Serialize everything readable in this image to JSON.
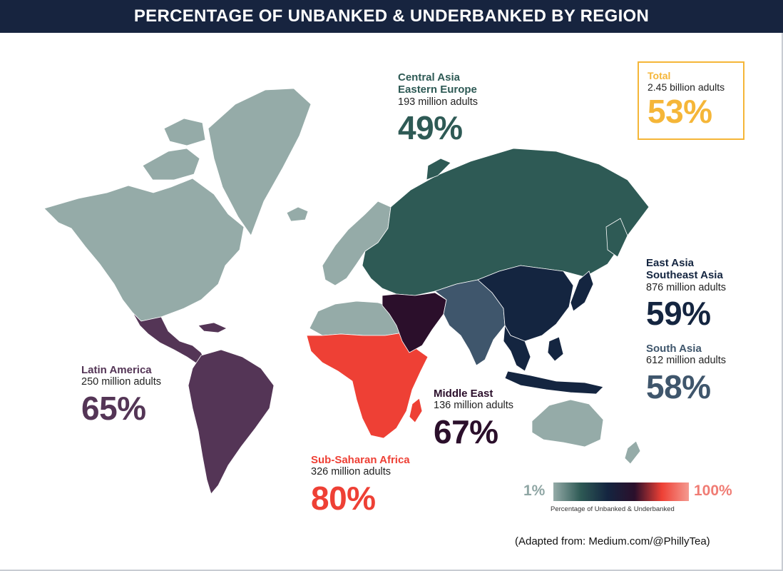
{
  "header": {
    "title": "PERCENTAGE OF UNBANKED & UNDERBANKED BY REGION"
  },
  "colors": {
    "header_bg": "#17243f",
    "unlisted_land": "#95aba8",
    "central_asia": "#2e5a55",
    "east_asia": "#142540",
    "south_asia": "#3f566c",
    "middle_east": "#2b0f2b",
    "latin_america": "#543556",
    "sub_saharan_africa": "#ee4035",
    "total": "#f5b638"
  },
  "regions": {
    "central_asia": {
      "name_line1": "Central Asia",
      "name_line2": "Eastern Europe",
      "adults": "193 million adults",
      "percent": "49%"
    },
    "east_asia": {
      "name_line1": "East Asia",
      "name_line2": "Southeast Asia",
      "adults": "876 million adults",
      "percent": "59%"
    },
    "south_asia": {
      "name": "South Asia",
      "adults": "612 million adults",
      "percent": "58%"
    },
    "latin_america": {
      "name": "Latin America",
      "adults": "250 million adults",
      "percent": "65%"
    },
    "middle_east": {
      "name": "Middle East",
      "adults": "136 million adults",
      "percent": "67%"
    },
    "sub_saharan_africa": {
      "name": "Sub-Saharan Africa",
      "adults": "326 million adults",
      "percent": "80%"
    }
  },
  "total": {
    "name": "Total",
    "adults": "2.45 billion adults",
    "percent": "53%"
  },
  "legend": {
    "min_label": "1%",
    "max_label": "100%",
    "caption": "Percentage of Unbanked & Underbanked",
    "gradient_colors": [
      "#95aba8",
      "#2e5a55",
      "#142540",
      "#2b0f2b",
      "#ee4035",
      "#f49a90"
    ]
  },
  "source": "(Adapted from: Medium.com/@PhillyTea)"
}
